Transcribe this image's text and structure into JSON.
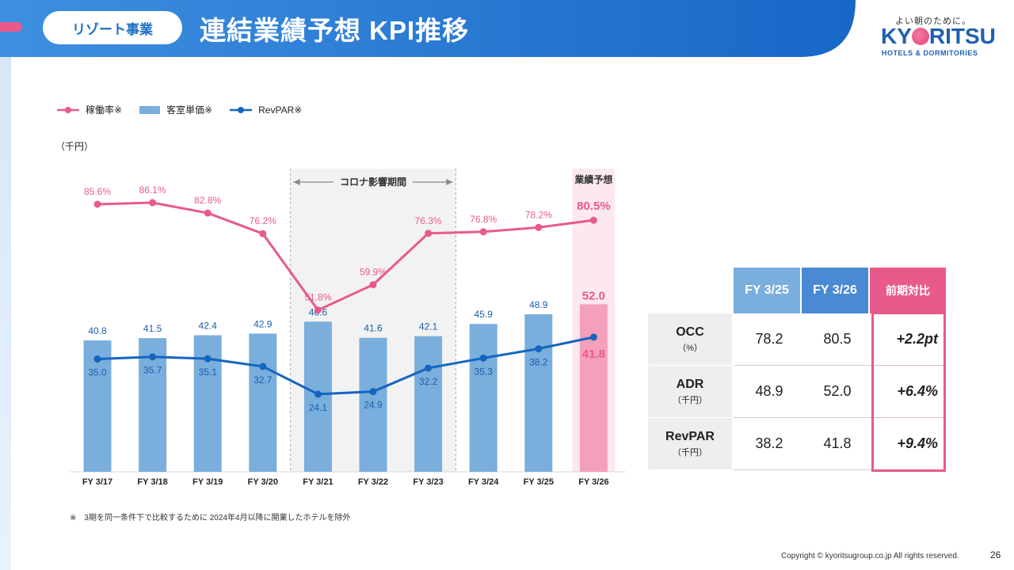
{
  "header": {
    "tag": "リゾート事業",
    "title": "連結業績予想 KPI推移",
    "logo_tagline": "よい朝のために。",
    "logo_pre": "KY",
    "logo_post": "RITSU",
    "logo_sub": "HOTELS & DORMITORIES"
  },
  "legend": [
    {
      "label": "稼働率※",
      "color": "#e85a8b"
    },
    {
      "label": "客室単価※",
      "color": "#7aaedc"
    },
    {
      "label": "RevPAR※",
      "color": "#1565c0"
    }
  ],
  "unit_label": "（千円）",
  "covid_label": "コロナ影響期間",
  "forecast_label": "業績予想",
  "chart_data": {
    "type": "bar",
    "categories": [
      "FY 3/17",
      "FY 3/18",
      "FY 3/19",
      "FY 3/20",
      "FY 3/21",
      "FY 3/22",
      "FY 3/23",
      "FY 3/24",
      "FY 3/25",
      "FY 3/26"
    ],
    "series": [
      {
        "name": "客室単価※",
        "type": "bar",
        "values": [
          40.8,
          41.5,
          42.4,
          42.9,
          46.6,
          41.6,
          42.1,
          45.9,
          48.9,
          52.0
        ],
        "color": "#7aaedc",
        "forecast_color": "#f4a0bb"
      },
      {
        "name": "RevPAR※",
        "type": "line",
        "values": [
          35.0,
          35.7,
          35.1,
          32.7,
          24.1,
          24.9,
          32.2,
          35.3,
          38.2,
          41.8
        ],
        "color": "#1565c0"
      },
      {
        "name": "稼働率※",
        "type": "line",
        "values": [
          85.6,
          86.1,
          82.8,
          76.2,
          51.8,
          59.9,
          76.3,
          76.8,
          78.2,
          80.5
        ],
        "labels": [
          "85.6%",
          "86.1%",
          "82.8%",
          "76.2%",
          "51.8%",
          "59.9%",
          "76.3%",
          "76.8%",
          "78.2%",
          "80.5%"
        ],
        "color": "#e85a8b"
      }
    ],
    "covid_period": [
      "FY 3/21",
      "FY 3/23"
    ],
    "forecast_category": "FY 3/26",
    "ylabel": "（千円）"
  },
  "table": {
    "headers": [
      "FY 3/25",
      "FY 3/26",
      "前期対比"
    ],
    "rows": [
      {
        "label": "OCC",
        "sub": "（%）",
        "v1": "78.2",
        "v2": "80.5",
        "delta": "+2.2pt"
      },
      {
        "label": "ADR",
        "sub": "（千円）",
        "v1": "48.9",
        "v2": "52.0",
        "delta": "+6.4%"
      },
      {
        "label": "RevPAR",
        "sub": "（千円）",
        "v1": "38.2",
        "v2": "41.8",
        "delta": "+9.4%"
      }
    ]
  },
  "footnote": "※　3期を同一条件下で比較するために 2024年4月以降に開業したホテルを除外",
  "copyright": "Copyright © kyoritsugroup.co.jp All rights reserved.",
  "page_number": "26"
}
